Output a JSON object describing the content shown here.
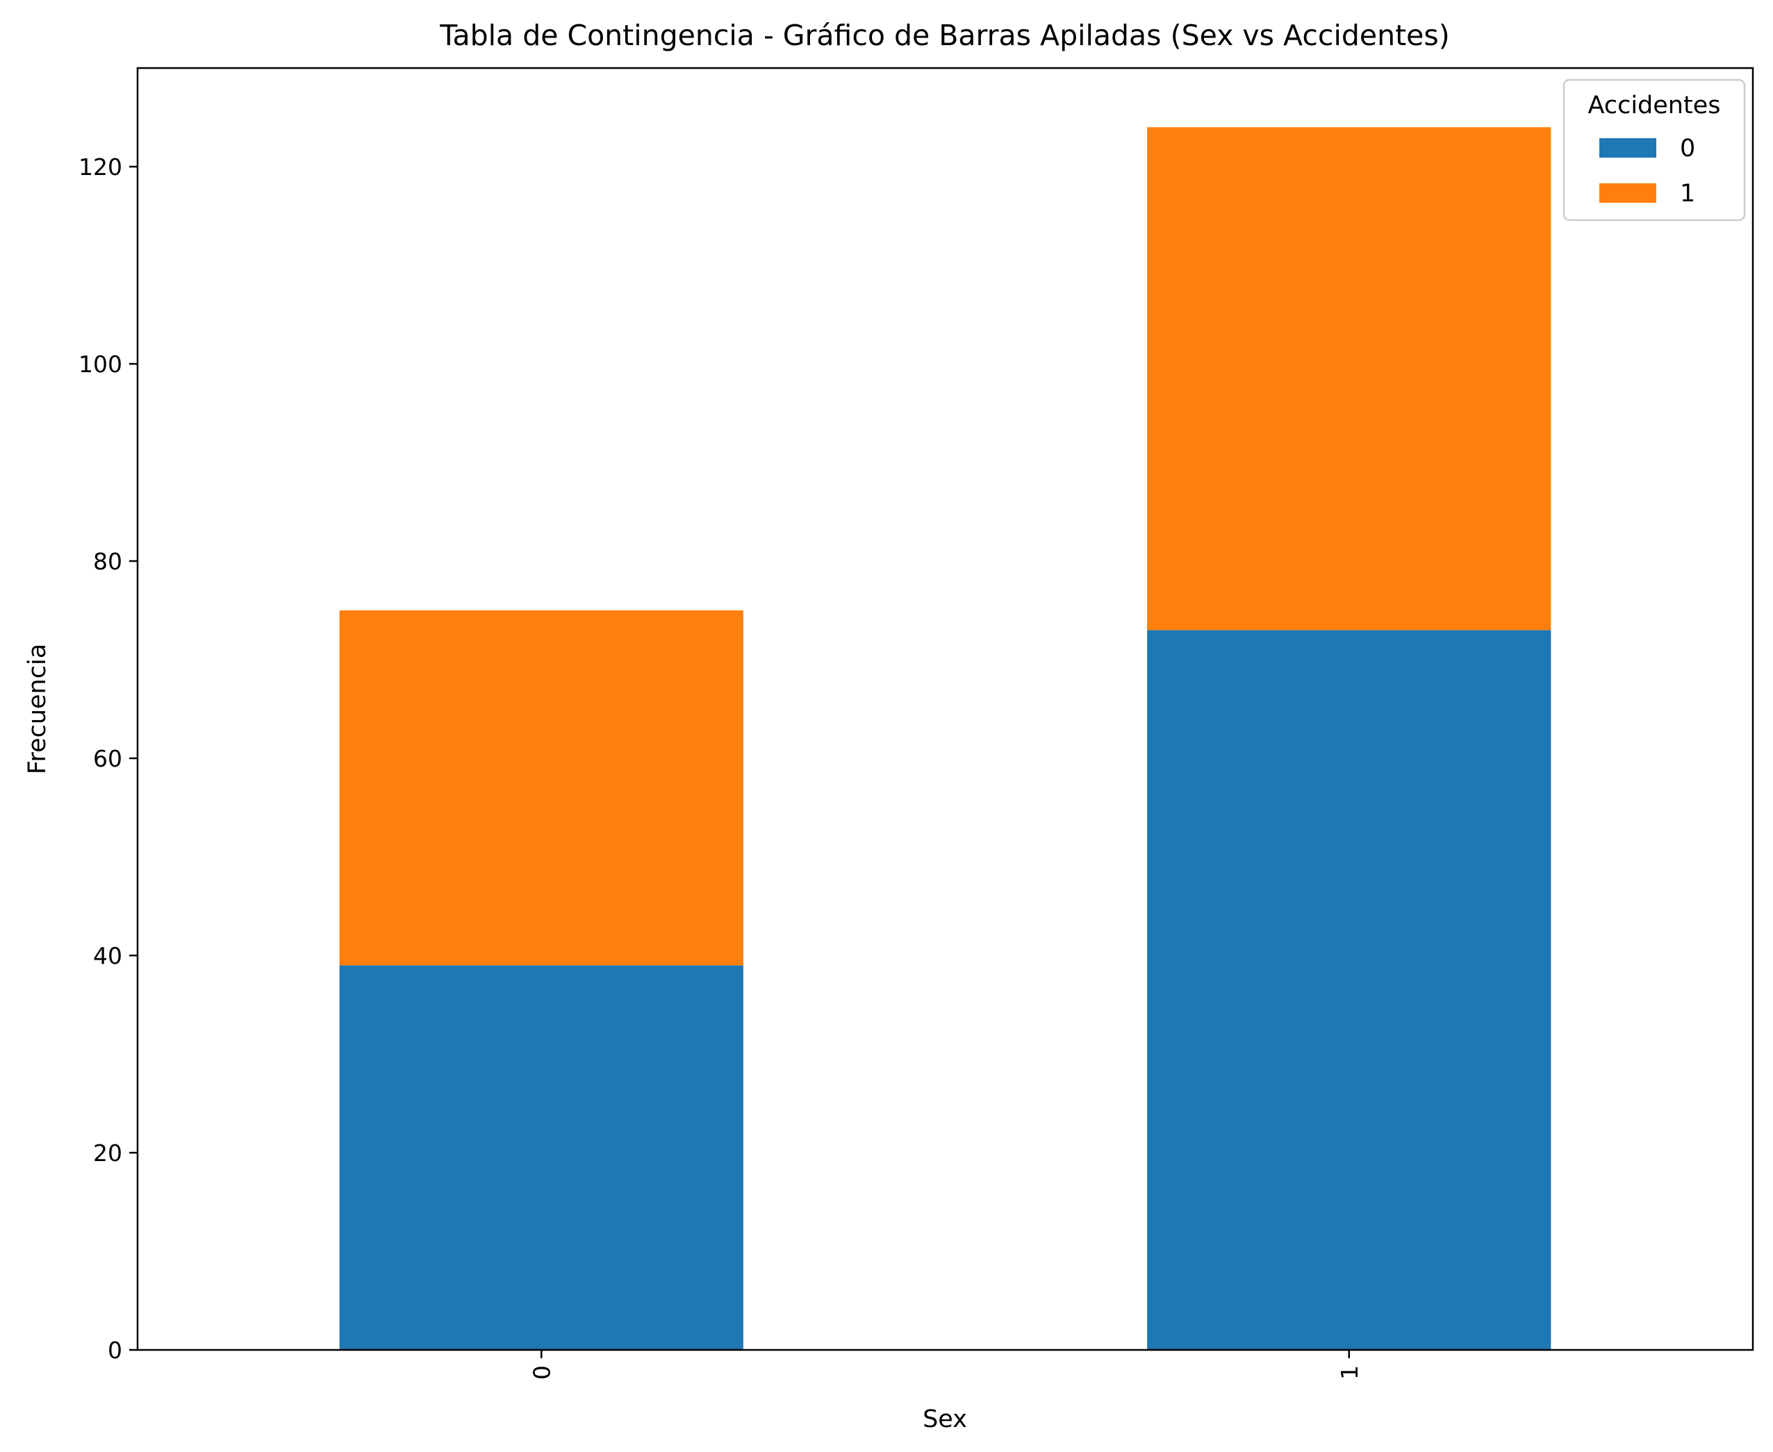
{
  "chart_data": {
    "type": "bar",
    "stacked": true,
    "title": "Tabla de Contingencia - Gráfico de Barras Apiladas (Sex vs Accidentes)",
    "xlabel": "Sex",
    "ylabel": "Frecuencia",
    "categories": [
      "0",
      "1"
    ],
    "series": [
      {
        "name": "0",
        "values": [
          39,
          73
        ],
        "color": "#1f77b4"
      },
      {
        "name": "1",
        "values": [
          36,
          51
        ],
        "color": "#ff7f0e"
      }
    ],
    "ylim": [
      0,
      130
    ],
    "yticks": [
      0,
      20,
      40,
      60,
      80,
      100,
      120
    ],
    "grid": false,
    "legend": {
      "title": "Accidentes",
      "placement": "top-right",
      "entries": [
        "0",
        "1"
      ]
    }
  }
}
